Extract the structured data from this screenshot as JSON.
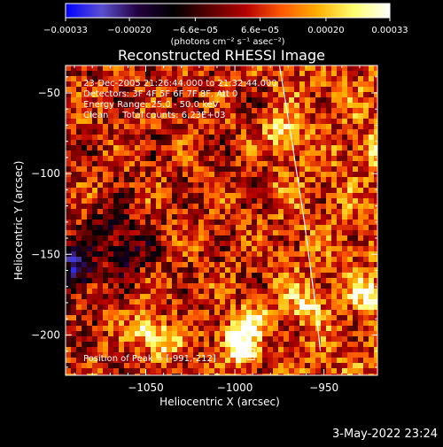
{
  "chart_data": {
    "type": "heatmap",
    "title": "Reconstructed RHESSI Image",
    "xlabel": "Heliocentric X (arcsec)",
    "ylabel": "Heliocentric Y (arcsec)",
    "xlim": [
      -1095,
      -920
    ],
    "ylim": [
      -225,
      -33
    ],
    "xticks": [
      -1050,
      -1000,
      -950
    ],
    "xtick_labels": [
      "−1050",
      "−1000",
      "−950"
    ],
    "yticks": [
      -50,
      -100,
      -150,
      -200
    ],
    "ytick_labels": [
      "−50",
      "−100",
      "−150",
      "−200"
    ],
    "colorbar": {
      "min": -0.00033,
      "max": 0.00033,
      "tick_values": [
        -0.00033,
        -0.0002,
        -6.6e-05,
        6.6e-05,
        0.0002,
        0.00033
      ],
      "tick_labels": [
        "−0.00033",
        "−0.00020",
        "−6.6e−05",
        "6.6e−05",
        "0.00020",
        "0.00033"
      ],
      "label": "(photons cm⁻² s⁻¹ asec⁻²)",
      "colormap": [
        "#0000ff",
        "#5a4fcf",
        "#23003e",
        "#000000",
        "#5a0000",
        "#b40000",
        "#ff5a00",
        "#ffb000",
        "#ffff70",
        "#ffffff"
      ]
    },
    "annotations": [
      "23-Dec-2005 21:26:44.000 to 21:32:44.000",
      "Detectors: 3F 4F 5F 6F 7F 8F, Att 0",
      "Energy Range: 25.0 - 50.0 keV",
      "Clean     Total counts: 6.23E+03"
    ],
    "peak_label": "Position of Peak = [-991,-212]",
    "peak": {
      "x": -991,
      "y": -212
    },
    "limb_curve": [
      {
        "x": -975,
        "y": -33
      },
      {
        "x": -968,
        "y": -80
      },
      {
        "x": -961,
        "y": -130
      },
      {
        "x": -955,
        "y": -180
      },
      {
        "x": -952,
        "y": -210
      }
    ],
    "hot_spots": [
      {
        "x": -1050,
        "y": -195,
        "value": 0.0003
      },
      {
        "x": -1040,
        "y": -205,
        "value": 0.00025
      },
      {
        "x": -995,
        "y": -210,
        "value": 0.00033
      },
      {
        "x": -1000,
        "y": -200,
        "value": 0.0003
      },
      {
        "x": -990,
        "y": -190,
        "value": 0.00028
      },
      {
        "x": -975,
        "y": -75,
        "value": 0.00024
      },
      {
        "x": -960,
        "y": -180,
        "value": 0.00022
      },
      {
        "x": -925,
        "y": -175,
        "value": 0.00026
      },
      {
        "x": -920,
        "y": -85,
        "value": 0.0002
      }
    ],
    "negative_spots": [
      {
        "x": -1090,
        "y": -160,
        "value": -0.0003
      },
      {
        "x": -1060,
        "y": -150,
        "value": -0.00018
      },
      {
        "x": -1070,
        "y": -130,
        "value": -0.00012
      }
    ]
  },
  "footer": {
    "timestamp": "3-May-2022 23:24"
  }
}
